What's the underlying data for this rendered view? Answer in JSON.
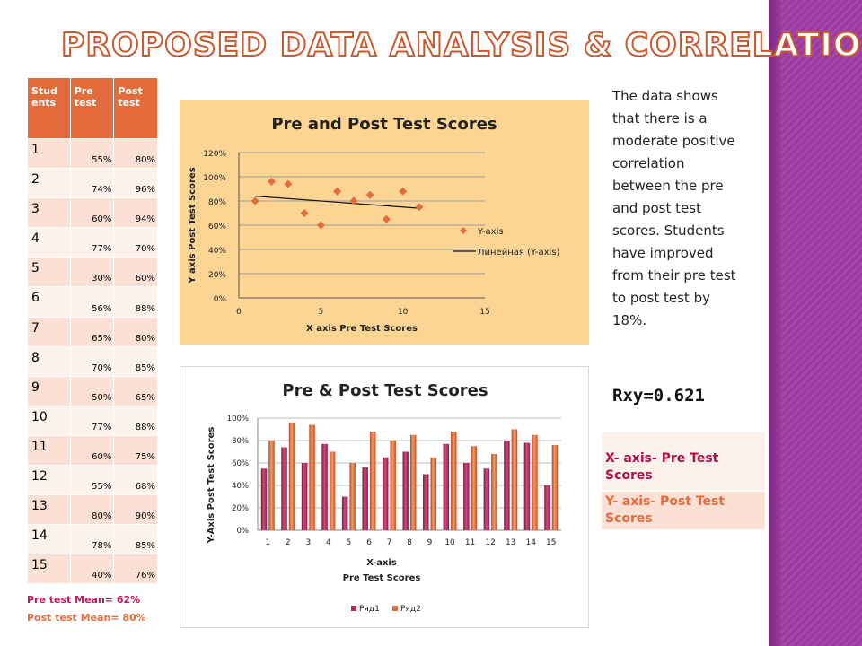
{
  "slide": {
    "title": "Proposed Data Analysis & Correlation",
    "description": "The data shows that there is a moderate positive correlation between the pre and post test scores.  Students have improved from their pre test to post test by 18%.",
    "rxy": "Rxy=0.621",
    "x_axis_note": "X- axis- Pre Test Scores",
    "y_axis_note": "Y- axis- Post Test Scores",
    "pre_mean": "Pre test Mean= 62%",
    "post_mean": "Post test Mean= 80%",
    "colors": {
      "accent": "#e46c3c",
      "series1": "#b3285a",
      "series2": "#e46c3c",
      "marker": "#e46c3c",
      "scatter_bg": "#fcd594"
    }
  },
  "table": {
    "headers": [
      "Stud ents",
      "Pre test",
      "Post test"
    ],
    "rows": [
      [
        "1",
        "55%",
        "80%"
      ],
      [
        "2",
        "74%",
        "96%"
      ],
      [
        "3",
        "60%",
        "94%"
      ],
      [
        "4",
        "77%",
        "70%"
      ],
      [
        "5",
        "30%",
        "60%"
      ],
      [
        "6",
        "56%",
        "88%"
      ],
      [
        "7",
        "65%",
        "80%"
      ],
      [
        "8",
        "70%",
        "85%"
      ],
      [
        "9",
        "50%",
        "65%"
      ],
      [
        "10",
        "77%",
        "88%"
      ],
      [
        "11",
        "60%",
        "75%"
      ],
      [
        "12",
        "55%",
        "68%"
      ],
      [
        "13",
        "80%",
        "90%"
      ],
      [
        "14",
        "78%",
        "85%"
      ],
      [
        "15",
        "40%",
        "76%"
      ]
    ]
  },
  "chart_data": [
    {
      "type": "scatter",
      "title": "Pre and Post Test Scores",
      "xlabel": "X axis  Pre Test Scores",
      "ylabel": "Y axis  Post Test Scores",
      "xlim": [
        0,
        15
      ],
      "ylim": [
        0,
        1.2
      ],
      "xticks": [
        "0",
        "5",
        "10",
        "15"
      ],
      "yticks": [
        "0%",
        "20%",
        "40%",
        "60%",
        "80%",
        "100%",
        "120%"
      ],
      "grid": true,
      "legend_position": "right",
      "series": [
        {
          "name": "Y-axis",
          "x": [
            1,
            2,
            3,
            4,
            5,
            6,
            7,
            8,
            9,
            10,
            11
          ],
          "y": [
            0.8,
            0.96,
            0.94,
            0.7,
            0.6,
            0.88,
            0.8,
            0.85,
            0.65,
            0.88,
            0.75
          ]
        }
      ],
      "trendline": {
        "name": "Линейная (Y-axis)",
        "x": [
          1,
          11
        ],
        "y": [
          0.84,
          0.74
        ]
      }
    },
    {
      "type": "bar",
      "title": "Pre & Post Test Scores",
      "xlabel": "X-axis\nPre   Test Scores",
      "ylabel": "Y-Axis  Post Test Scores",
      "ylim": [
        0,
        1.0
      ],
      "yticks": [
        "0%",
        "20%",
        "40%",
        "60%",
        "80%",
        "100%"
      ],
      "grid": true,
      "legend_position": "bottom",
      "categories": [
        "1",
        "2",
        "3",
        "4",
        "5",
        "6",
        "7",
        "8",
        "9",
        "10",
        "11",
        "12",
        "13",
        "14",
        "15"
      ],
      "series": [
        {
          "name": "Ряд1",
          "values": [
            0.55,
            0.74,
            0.6,
            0.77,
            0.3,
            0.56,
            0.65,
            0.7,
            0.5,
            0.77,
            0.6,
            0.55,
            0.8,
            0.78,
            0.4
          ]
        },
        {
          "name": "Ряд2",
          "values": [
            0.8,
            0.96,
            0.94,
            0.7,
            0.6,
            0.88,
            0.8,
            0.85,
            0.65,
            0.88,
            0.75,
            0.68,
            0.9,
            0.85,
            0.76
          ]
        }
      ]
    }
  ]
}
